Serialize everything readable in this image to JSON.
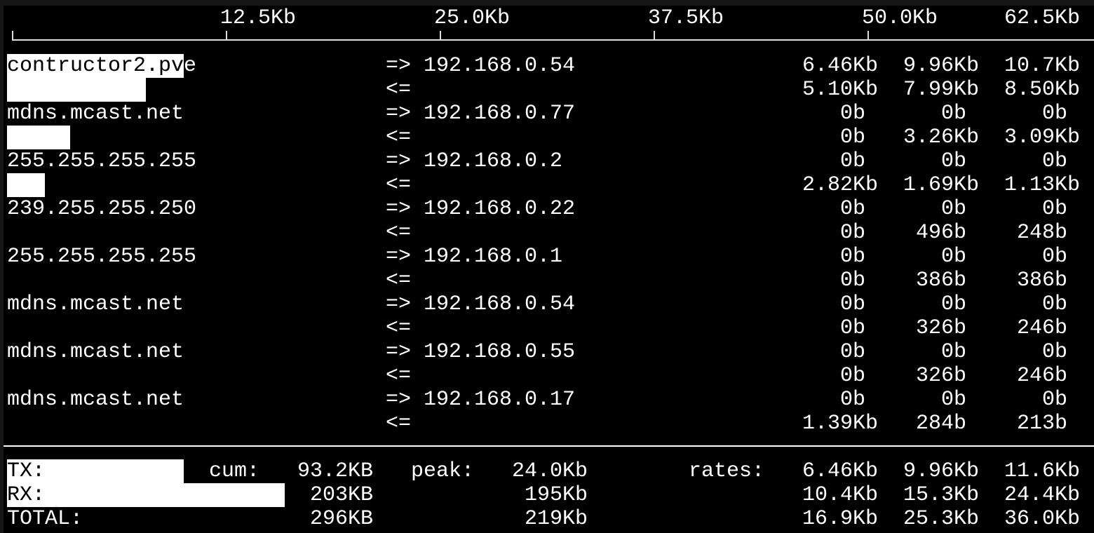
{
  "scale": {
    "unit_max_kb": 62.5,
    "ticks": [
      {
        "label": "12.5Kb",
        "value": 12.5
      },
      {
        "label": "25.0Kb",
        "value": 25.0
      },
      {
        "label": "37.5Kb",
        "value": 37.5
      },
      {
        "label": "50.0Kb",
        "value": 50.0
      },
      {
        "label": "62.5Kb",
        "value": 62.5
      }
    ]
  },
  "flows": [
    {
      "host": "contructor2.pve",
      "dir_out": "=>",
      "dir_in": "<=",
      "dest": "192.168.0.54",
      "sent": [
        "6.46Kb",
        "9.96Kb",
        "10.7Kb"
      ],
      "recv": [
        "5.10Kb",
        "7.99Kb",
        "8.50Kb"
      ],
      "bar_sent_kb": 10.3,
      "bar_recv_kb": 8.1
    },
    {
      "host": "mdns.mcast.net",
      "dir_out": "=>",
      "dir_in": "<=",
      "dest": "192.168.0.77",
      "sent": [
        "0b",
        "0b",
        "0b"
      ],
      "recv": [
        "0b",
        "3.26Kb",
        "3.09Kb"
      ],
      "bar_sent_kb": 0,
      "bar_recv_kb": 3.7
    },
    {
      "host": "255.255.255.255",
      "dir_out": "=>",
      "dir_in": "<=",
      "dest": "192.168.0.2",
      "sent": [
        "0b",
        "0b",
        "0b"
      ],
      "recv": [
        "2.82Kb",
        "1.69Kb",
        "1.13Kb"
      ],
      "bar_sent_kb": 0,
      "bar_recv_kb": 2.2
    },
    {
      "host": "239.255.255.250",
      "dir_out": "=>",
      "dir_in": "<=",
      "dest": "192.168.0.22",
      "sent": [
        "0b",
        "0b",
        "0b"
      ],
      "recv": [
        "0b",
        "496b",
        "248b"
      ],
      "bar_sent_kb": 0,
      "bar_recv_kb": 0
    },
    {
      "host": "255.255.255.255",
      "dir_out": "=>",
      "dir_in": "<=",
      "dest": "192.168.0.1",
      "sent": [
        "0b",
        "0b",
        "0b"
      ],
      "recv": [
        "0b",
        "386b",
        "386b"
      ],
      "bar_sent_kb": 0,
      "bar_recv_kb": 0
    },
    {
      "host": "mdns.mcast.net",
      "dir_out": "=>",
      "dir_in": "<=",
      "dest": "192.168.0.54",
      "sent": [
        "0b",
        "0b",
        "0b"
      ],
      "recv": [
        "0b",
        "326b",
        "246b"
      ],
      "bar_sent_kb": 0,
      "bar_recv_kb": 0
    },
    {
      "host": "mdns.mcast.net",
      "dir_out": "=>",
      "dir_in": "<=",
      "dest": "192.168.0.55",
      "sent": [
        "0b",
        "0b",
        "0b"
      ],
      "recv": [
        "0b",
        "326b",
        "246b"
      ],
      "bar_sent_kb": 0,
      "bar_recv_kb": 0
    },
    {
      "host": "mdns.mcast.net",
      "dir_out": "=>",
      "dir_in": "<=",
      "dest": "192.168.0.17",
      "sent": [
        "0b",
        "0b",
        "0b"
      ],
      "recv": [
        "1.39Kb",
        "284b",
        "213b"
      ],
      "bar_sent_kb": 0,
      "bar_recv_kb": 0
    }
  ],
  "totals": {
    "cum_label": "cum:",
    "peak_label": "peak:",
    "rates_label": "rates:",
    "rows": [
      {
        "label": "TX:",
        "cum": "93.2KB",
        "peak": "24.0Kb",
        "rates": [
          "6.46Kb",
          "9.96Kb",
          "11.6Kb"
        ],
        "bar_kb": 10.3
      },
      {
        "label": "RX:",
        "cum": "203KB",
        "peak": "195Kb",
        "rates": [
          "10.4Kb",
          "15.3Kb",
          "24.4Kb"
        ],
        "bar_kb": 16.2
      },
      {
        "label": "TOTAL:",
        "cum": "296KB",
        "peak": "219Kb",
        "rates": [
          "16.9Kb",
          "25.3Kb",
          "36.0Kb"
        ],
        "bar_kb": 0
      }
    ]
  }
}
